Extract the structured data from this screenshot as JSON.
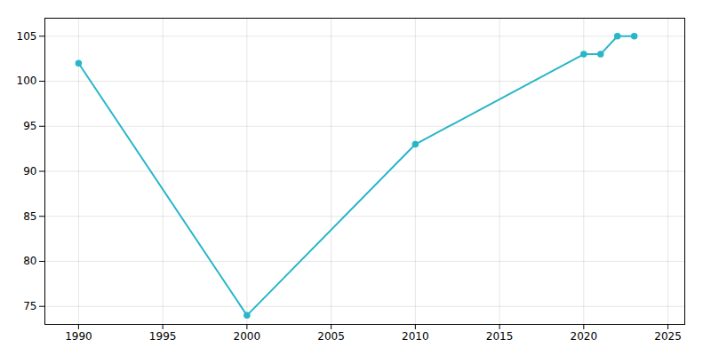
{
  "chart_data": {
    "type": "line",
    "x": [
      1990,
      2000,
      2010,
      2020,
      2021,
      2022,
      2023
    ],
    "values": [
      102,
      74,
      93,
      103,
      103,
      105,
      105
    ],
    "color": "#29b6c8",
    "marker": "circle",
    "xlim": [
      1988,
      2026
    ],
    "ylim": [
      73,
      107
    ],
    "xticks": [
      1990,
      1995,
      2000,
      2005,
      2010,
      2015,
      2020,
      2025
    ],
    "yticks": [
      75,
      80,
      85,
      90,
      95,
      100,
      105
    ],
    "grid": true
  }
}
